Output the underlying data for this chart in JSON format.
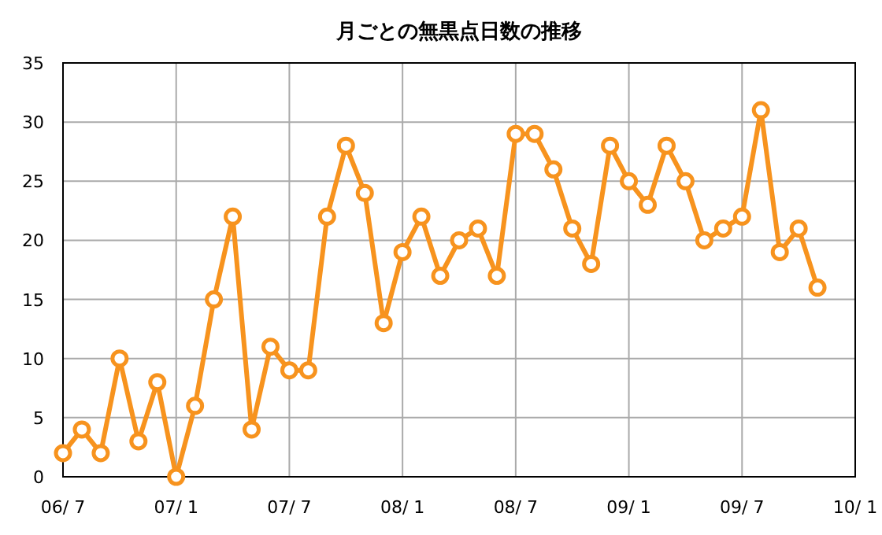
{
  "chart_data": {
    "type": "line",
    "title": "月ごとの無黒点日数の推移",
    "categories": [
      "06/ 7",
      null,
      null,
      null,
      null,
      null,
      "07/ 1",
      null,
      null,
      null,
      null,
      null,
      "07/ 7",
      null,
      null,
      null,
      null,
      null,
      "08/ 1",
      null,
      null,
      null,
      null,
      null,
      "08/ 7",
      null,
      null,
      null,
      null,
      null,
      "09/ 1",
      null,
      null,
      null,
      null,
      null,
      "09/ 7",
      null,
      null,
      null,
      null,
      null,
      "10/ 1"
    ],
    "series": [
      {
        "color": "#f7931e",
        "values": [
          2,
          4,
          2,
          10,
          3,
          8,
          0,
          6,
          15,
          22,
          4,
          11,
          9,
          9,
          22,
          28,
          24,
          13,
          19,
          22,
          17,
          20,
          21,
          17,
          29,
          29,
          26,
          21,
          18,
          28,
          25,
          23,
          28,
          25,
          20,
          21,
          22,
          31,
          19,
          21,
          16,
          null,
          null
        ]
      }
    ],
    "ylim": [
      0,
      35
    ],
    "yticks": [
      0,
      5,
      10,
      15,
      20,
      25,
      30,
      35
    ],
    "grid": true,
    "marker": "circle",
    "line_style": "solid"
  }
}
